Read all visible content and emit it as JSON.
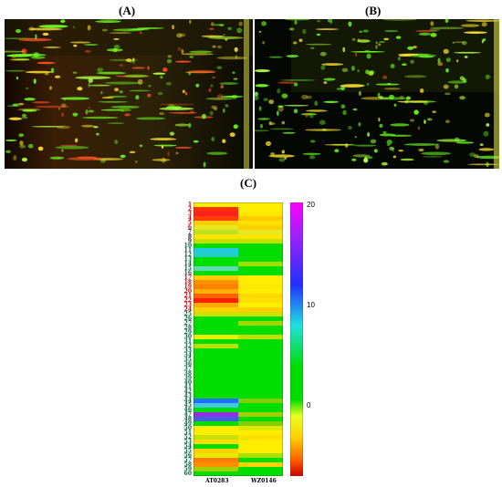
{
  "panels": {
    "a": {
      "label": "(A)"
    },
    "b": {
      "label": "(B)"
    },
    "c": {
      "label": "(C)"
    }
  },
  "heatmap": {
    "row_labels": [
      "1",
      "2",
      "3",
      "4",
      "5",
      "6",
      "7",
      "8",
      "9",
      "10",
      "11",
      "12",
      "13",
      "14",
      "15",
      "16",
      "17",
      "18",
      "19",
      "20",
      "21",
      "22",
      "23",
      "24",
      "25",
      "26",
      "27",
      "28",
      "29",
      "30",
      "31",
      "32",
      "33",
      "34",
      "35",
      "36",
      "37",
      "38",
      "39",
      "40",
      "41",
      "42",
      "43",
      "44",
      "45",
      "46",
      "47",
      "48",
      "49",
      "50",
      "51",
      "52",
      "53",
      "54",
      "55",
      "56",
      "57",
      "58",
      "59",
      "60"
    ],
    "column_labels": [
      "AT0283",
      "WZ0146"
    ],
    "scale_ticks": [
      "20",
      "10",
      "0"
    ]
  }
}
